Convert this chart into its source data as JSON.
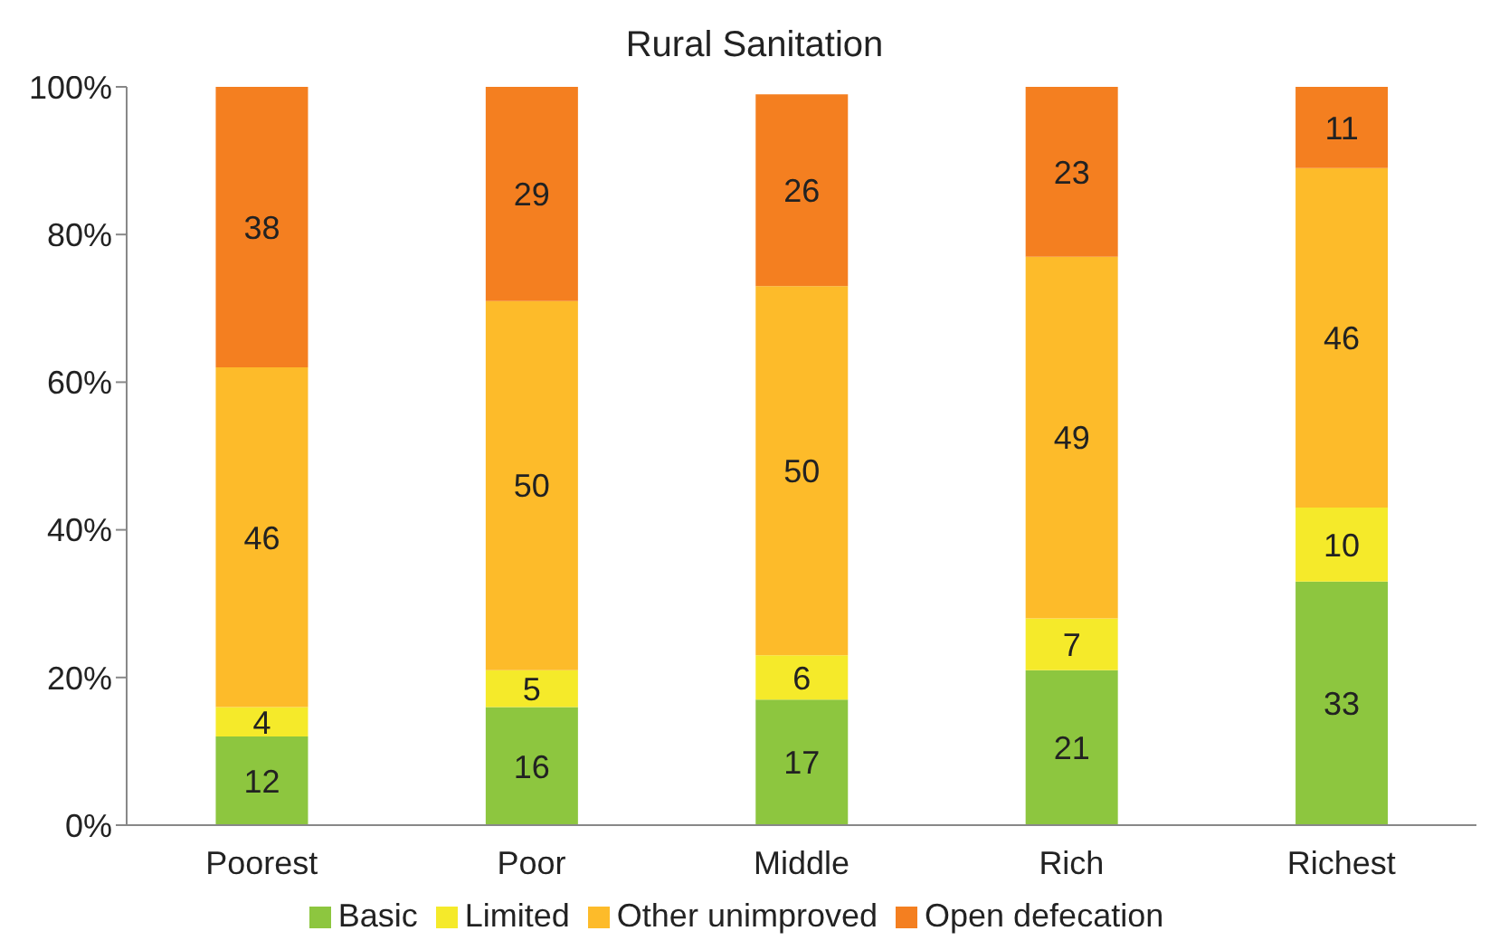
{
  "chart_data": {
    "type": "bar",
    "title": "Rural Sanitation",
    "stacked": true,
    "data_labels": true,
    "legend": "bottom",
    "grid": false,
    "categories": [
      "Poorest",
      "Poor",
      "Middle",
      "Rich",
      "Richest"
    ],
    "series": [
      {
        "name": "Basic",
        "color": "#8dc63f",
        "values": [
          12,
          16,
          17,
          21,
          33
        ]
      },
      {
        "name": "Limited",
        "color": "#f5ea2a",
        "values": [
          4,
          5,
          6,
          7,
          10
        ]
      },
      {
        "name": "Other unimproved",
        "color": "#fdbb2a",
        "values": [
          46,
          50,
          50,
          49,
          46
        ]
      },
      {
        "name": "Open defecation",
        "color": "#f47f20",
        "values": [
          38,
          29,
          26,
          23,
          11
        ]
      }
    ],
    "ylim": [
      0,
      100
    ],
    "yticks": [
      {
        "value": 0,
        "label": "0%"
      },
      {
        "value": 20,
        "label": "20%"
      },
      {
        "value": 40,
        "label": "40%"
      },
      {
        "value": 60,
        "label": "60%"
      },
      {
        "value": 80,
        "label": "80%"
      },
      {
        "value": 100,
        "label": "100%"
      }
    ]
  }
}
